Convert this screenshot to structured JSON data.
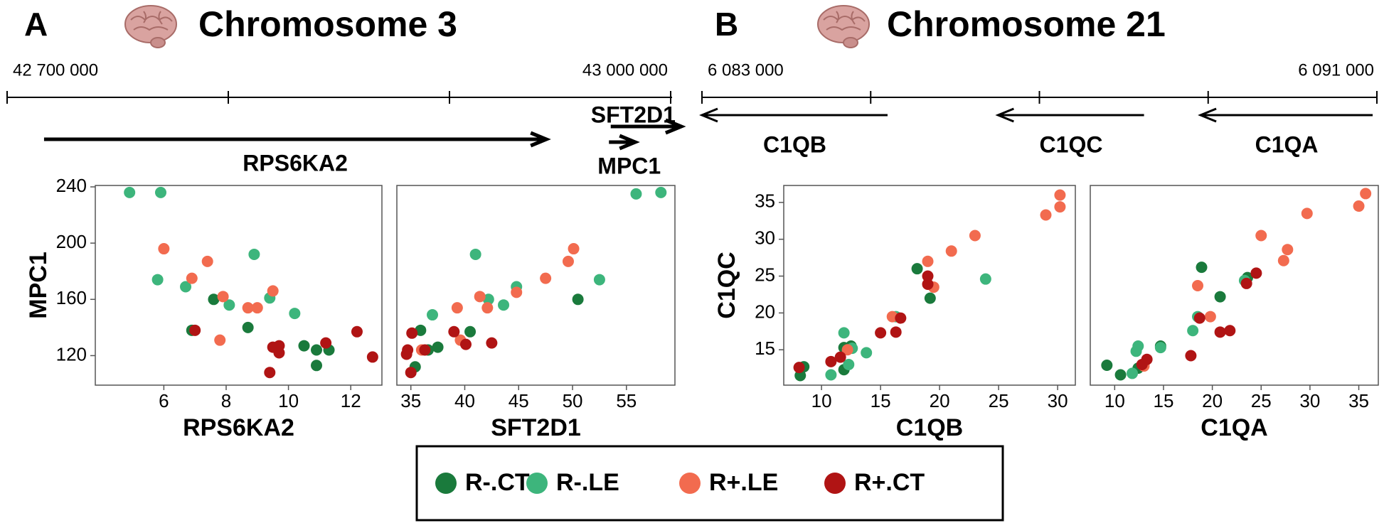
{
  "panels": [
    {
      "label": "A",
      "title": "Chromosome 3",
      "track": {
        "xlim": [
          42700000,
          43000000
        ],
        "ticks": [
          {
            "value": 42700000,
            "label": "42 700 000"
          },
          {
            "value": 42800000,
            "label": null
          },
          {
            "value": 42900000,
            "label": null
          },
          {
            "value": 43000000,
            "label": "43 000 000"
          }
        ],
        "genes": [
          {
            "name": "RPS6KA2",
            "start": 42716700,
            "end": 42943800
          },
          {
            "name": "SFT2D1",
            "start": 42972900,
            "end": 43004800
          },
          {
            "name": "MPC1",
            "start": 42972100,
            "end": 42984000
          }
        ]
      }
    },
    {
      "label": "B",
      "title": "Chromosome 21",
      "track": {
        "xlim": [
          6083000,
          6091000
        ],
        "ticks": [
          {
            "value": 6083000,
            "label": "6 083 000"
          },
          {
            "value": 6085000,
            "label": null
          },
          {
            "value": 6087000,
            "label": null
          },
          {
            "value": 6089000,
            "label": null
          },
          {
            "value": 6091000,
            "label": "6 091 000"
          }
        ],
        "genes": [
          {
            "name": "C1QB",
            "start": 6085200,
            "end": 6083000
          },
          {
            "name": "C1QC",
            "start": 6088240,
            "end": 6086510
          },
          {
            "name": "C1QA",
            "start": 6090950,
            "end": 6088910
          }
        ]
      }
    }
  ],
  "chart_data": [
    {
      "type": "scatter",
      "x_label": "RPS6KA2",
      "y_label": "MPC1",
      "xlim": [
        3.8,
        13.0
      ],
      "ylim": [
        99,
        241
      ],
      "xticks": [
        6,
        8,
        10,
        12
      ],
      "yticks": [
        120,
        160,
        200,
        240
      ],
      "series": [
        {
          "name": "R-.CT",
          "color": "#1a7a3c",
          "x": [
            7.6,
            6.9,
            8.7,
            10.5,
            10.9,
            10.9,
            11.3
          ],
          "values": [
            160,
            138,
            140,
            127,
            124,
            113,
            124
          ]
        },
        {
          "name": "R-.LE",
          "color": "#3db57c",
          "x": [
            4.9,
            5.9,
            5.8,
            6.7,
            8.1,
            8.9,
            9.4,
            10.2
          ],
          "values": [
            236,
            236,
            174,
            169,
            156,
            192,
            161,
            150
          ]
        },
        {
          "name": "R+.LE",
          "color": "#f26b4f",
          "x": [
            6.0,
            6.9,
            7.4,
            7.9,
            7.8,
            8.7,
            9.0,
            9.5
          ],
          "values": [
            196,
            175,
            187,
            162,
            131,
            154,
            154,
            166
          ]
        },
        {
          "name": "R+.CT",
          "color": "#b01414",
          "x": [
            7.0,
            9.5,
            9.7,
            9.7,
            9.4,
            11.2,
            12.2,
            12.7
          ],
          "values": [
            138,
            126,
            127,
            122,
            108,
            129,
            137,
            119
          ]
        }
      ]
    },
    {
      "type": "scatter",
      "x_label": "SFT2D1",
      "xlim": [
        33.7,
        59.5
      ],
      "ylim": [
        99,
        241
      ],
      "xticks": [
        35,
        40,
        45,
        50,
        55
      ],
      "series": [
        {
          "color": "#1a7a3c",
          "x": [
            35.9,
            35.4,
            36.6,
            37.5,
            40.5,
            50.5
          ],
          "values": [
            138,
            112,
            124,
            126,
            137,
            160
          ]
        },
        {
          "color": "#3db57c",
          "x": [
            41.0,
            37.0,
            42.2,
            43.6,
            44.8,
            52.5,
            55.9,
            58.2
          ],
          "values": [
            192,
            149,
            160,
            156,
            169,
            174,
            235,
            236
          ]
        },
        {
          "color": "#f26b4f",
          "x": [
            50.1,
            49.6,
            47.5,
            44.8,
            41.4,
            39.3,
            42.1,
            39.6,
            36.0
          ],
          "values": [
            196,
            187,
            175,
            165,
            162,
            154,
            154,
            131,
            124
          ]
        },
        {
          "color": "#b01414",
          "x": [
            35.1,
            34.6,
            35.0,
            36.3,
            39.0,
            40.1,
            42.5,
            34.7
          ],
          "values": [
            136,
            121,
            108,
            124,
            137,
            128,
            129,
            124
          ]
        }
      ]
    },
    {
      "type": "scatter",
      "x_label": "C1QB",
      "y_label": "C1QC",
      "xlim": [
        6.8,
        31.5
      ],
      "ylim": [
        10.2,
        37.3
      ],
      "xticks": [
        10,
        15,
        20,
        25,
        30
      ],
      "yticks": [
        15,
        20,
        25,
        30,
        35
      ],
      "series": [
        {
          "color": "#1a7a3c",
          "x": [
            8.2,
            8.5,
            11.9,
            11.9,
            18.1,
            19.2,
            12.5
          ],
          "values": [
            11.5,
            12.7,
            12.3,
            15.3,
            26,
            22,
            15.5
          ]
        },
        {
          "color": "#3db57c",
          "x": [
            10.8,
            11.9,
            12.3,
            12.6,
            13.8,
            16.3,
            23.9
          ],
          "values": [
            11.6,
            17.3,
            13,
            15.2,
            14.6,
            19.5,
            24.6
          ]
        },
        {
          "color": "#f26b4f",
          "x": [
            16,
            19,
            19.5,
            21,
            23,
            29,
            30.2,
            30.2,
            12.2
          ],
          "values": [
            19.5,
            27,
            23.5,
            28.4,
            30.5,
            33.3,
            36,
            34.4,
            15
          ]
        },
        {
          "color": "#b01414",
          "x": [
            8.1,
            10.8,
            11.6,
            15,
            16.3,
            16.7,
            19,
            19
          ],
          "values": [
            12.6,
            13.4,
            14,
            17.3,
            17.4,
            19.3,
            25,
            23.9
          ]
        }
      ]
    },
    {
      "type": "scatter",
      "x_label": "C1QA",
      "xlim": [
        7.5,
        37
      ],
      "ylim": [
        10.2,
        37.3
      ],
      "xticks": [
        10,
        15,
        20,
        25,
        30,
        35
      ],
      "series": [
        {
          "color": "#1a7a3c",
          "x": [
            9.2,
            10.6,
            12.4,
            14.7,
            18.9,
            20.8,
            23.6
          ],
          "values": [
            12.9,
            11.6,
            12.5,
            15.5,
            26.2,
            22.2,
            24.8
          ]
        },
        {
          "color": "#3db57c",
          "x": [
            12.2,
            12.4,
            11.8,
            14.7,
            18,
            18.5,
            23.3
          ],
          "values": [
            14.8,
            15.5,
            11.8,
            15.3,
            17.6,
            19.5,
            24.4
          ]
        },
        {
          "color": "#f26b4f",
          "x": [
            13,
            18.5,
            19.8,
            25,
            27.3,
            27.7,
            29.7,
            35,
            35.7
          ],
          "values": [
            12.8,
            23.7,
            19.5,
            30.5,
            27.1,
            28.6,
            33.5,
            34.5,
            36.2
          ]
        },
        {
          "color": "#b01414",
          "x": [
            12.8,
            13.3,
            17.8,
            18.7,
            20.8,
            21.8,
            23.5,
            24.5
          ],
          "values": [
            13,
            13.7,
            14.2,
            19.3,
            17.4,
            17.6,
            24,
            25.4
          ]
        }
      ]
    }
  ]
}
